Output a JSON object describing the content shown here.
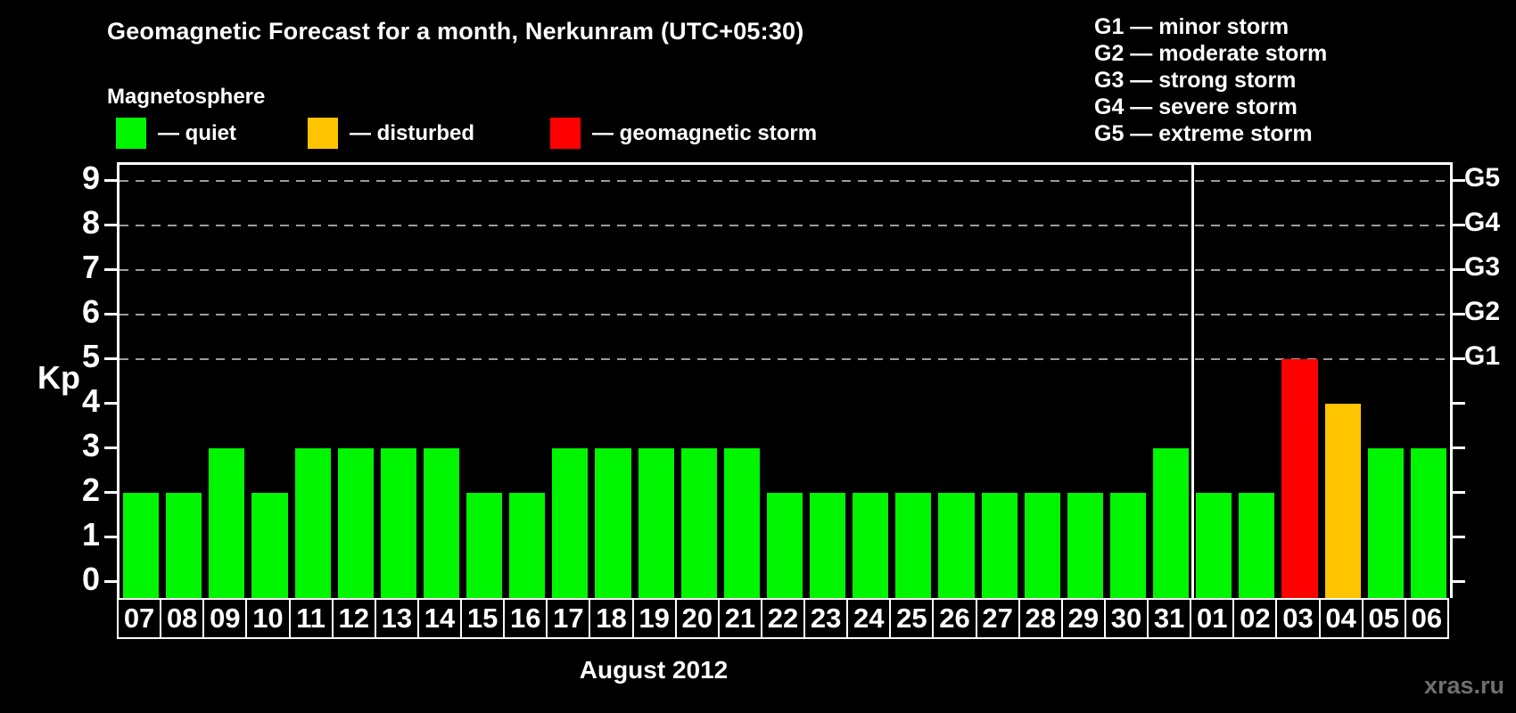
{
  "header": {
    "title": "Geomagnetic Forecast for a month, Nerkunram (UTC+05:30)",
    "subtitle": "Magnetosphere"
  },
  "legend": {
    "items": [
      {
        "name": "quiet",
        "label": "— quiet",
        "status": "quiet"
      },
      {
        "name": "disturbed",
        "label": "— disturbed",
        "status": "disturbed"
      },
      {
        "name": "storm",
        "label": "— geomagnetic storm",
        "status": "storm"
      }
    ]
  },
  "g_legend": [
    "G1 — minor storm",
    "G2 — moderate storm",
    "G3 — strong storm",
    "G4 — severe storm",
    "G5 — extreme storm"
  ],
  "chart_data": {
    "type": "bar",
    "title": "Geomagnetic Forecast for a month, Nerkunram (UTC+05:30)",
    "ylabel": "Kp",
    "xlabel": "August 2012",
    "ylim": [
      0,
      9
    ],
    "yticks": [
      0,
      1,
      2,
      3,
      4,
      5,
      6,
      7,
      8,
      9
    ],
    "grid": "dashed horizontal lines at Kp 5-9 only",
    "categories": [
      "07",
      "08",
      "09",
      "10",
      "11",
      "12",
      "13",
      "14",
      "15",
      "16",
      "17",
      "18",
      "19",
      "20",
      "21",
      "22",
      "23",
      "24",
      "25",
      "26",
      "27",
      "28",
      "29",
      "30",
      "31",
      "01",
      "02",
      "03",
      "04",
      "05",
      "06"
    ],
    "values": [
      2,
      2,
      3,
      2,
      3,
      3,
      3,
      3,
      2,
      2,
      3,
      3,
      3,
      3,
      3,
      2,
      2,
      2,
      2,
      2,
      2,
      2,
      2,
      2,
      3,
      2,
      2,
      5,
      4,
      3,
      3
    ],
    "statuses": [
      "quiet",
      "quiet",
      "quiet",
      "quiet",
      "quiet",
      "quiet",
      "quiet",
      "quiet",
      "quiet",
      "quiet",
      "quiet",
      "quiet",
      "quiet",
      "quiet",
      "quiet",
      "quiet",
      "quiet",
      "quiet",
      "quiet",
      "quiet",
      "quiet",
      "quiet",
      "quiet",
      "quiet",
      "quiet",
      "quiet",
      "quiet",
      "storm",
      "disturbed",
      "quiet",
      "quiet"
    ],
    "right_axis": [
      {
        "kp": 5,
        "label": "G1"
      },
      {
        "kp": 6,
        "label": "G2"
      },
      {
        "kp": 7,
        "label": "G3"
      },
      {
        "kp": 8,
        "label": "G4"
      },
      {
        "kp": 9,
        "label": "G5"
      }
    ],
    "month_separator_after_index": 24
  },
  "watermark": "xras.ru",
  "colors": {
    "background": "#000000",
    "axis": "#ffffff",
    "grid": "#9c9c9c",
    "quiet": "#00f500",
    "disturbed": "#ffc400",
    "storm": "#ff0000",
    "watermark": "#6f6f6f"
  }
}
